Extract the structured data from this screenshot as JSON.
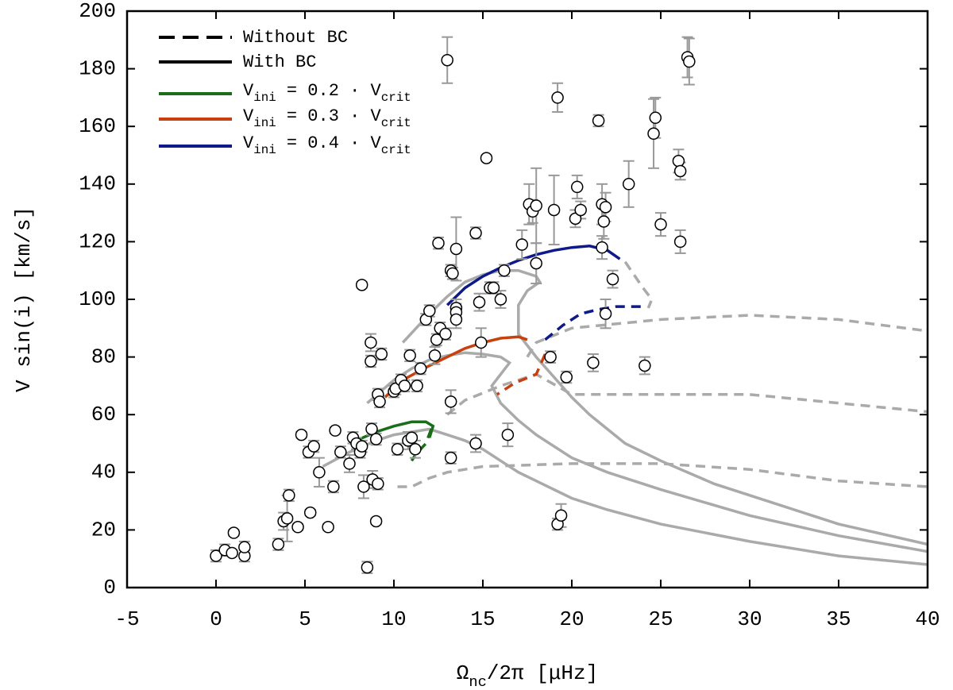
{
  "chart_data": {
    "type": "line",
    "xlabel": [
      "Ω",
      "nc",
      "/2π [μHz]"
    ],
    "ylabel": "V sin(i) [km/s]",
    "xlim": [
      -5,
      40
    ],
    "xticks": [
      -5,
      0,
      5,
      10,
      15,
      20,
      25,
      30,
      35,
      40
    ],
    "ylim": [
      0,
      200
    ],
    "yticks": [
      0,
      20,
      40,
      60,
      80,
      100,
      120,
      140,
      160,
      180,
      200
    ],
    "legend_position": "upper left",
    "legend": [
      {
        "label": "Without BC",
        "color": "#000000",
        "dash": true
      },
      {
        "label": "With BC",
        "color": "#000000",
        "dash": false
      },
      {
        "label": [
          "V",
          "ini",
          " = 0.2 · V",
          "crit"
        ],
        "color": "#1a6e1a",
        "dash": false
      },
      {
        "label": [
          "V",
          "ini",
          " = 0.3 · V",
          "crit"
        ],
        "color": "#c8400e",
        "dash": false
      },
      {
        "label": [
          "V",
          "ini",
          " = 0.4 · V",
          "crit"
        ],
        "color": "#0e1a8a",
        "dash": false
      }
    ],
    "series": [
      {
        "color": "#aaaaaa",
        "dash": true,
        "x": [
          10.2,
          11,
          12,
          13,
          15,
          20,
          25,
          30,
          35,
          40
        ],
        "values": [
          35,
          35,
          38,
          40,
          42,
          43,
          43,
          41,
          37,
          35
        ]
      },
      {
        "color": "#aaaaaa",
        "dash": true,
        "x": [
          13,
          14,
          16,
          18,
          20,
          25,
          30,
          35,
          40
        ],
        "values": [
          60,
          65,
          70,
          74,
          67,
          67,
          67,
          64,
          61
        ]
      },
      {
        "color": "#aaaaaa",
        "dash": true,
        "x": [
          17.5,
          18,
          20,
          25,
          30,
          35,
          40
        ],
        "values": [
          80,
          85,
          90,
          93,
          94.5,
          93,
          89
        ]
      },
      {
        "color": "#aaaaaa",
        "dash": true,
        "x": [
          23,
          24,
          24.5,
          24.3
        ],
        "values": [
          113,
          104,
          100,
          97
        ]
      },
      {
        "color": "#aaaaaa",
        "dash": false,
        "x": [
          6,
          7.5,
          9,
          10,
          11,
          12,
          13,
          14,
          15,
          16,
          17,
          18,
          20,
          22,
          25,
          30,
          35,
          40
        ],
        "values": [
          42,
          47,
          51,
          53,
          54,
          55,
          53,
          51,
          48,
          44,
          40,
          37,
          31,
          27,
          22,
          16,
          11,
          8
        ]
      },
      {
        "color": "#aaaaaa",
        "dash": false,
        "x": [
          8.5,
          10,
          11,
          12,
          13,
          14,
          15,
          16,
          16.5,
          16,
          15.5,
          16,
          17,
          18,
          20,
          22,
          25,
          30,
          35,
          40
        ],
        "values": [
          64,
          72,
          76,
          79,
          80.5,
          81.5,
          81,
          80,
          78,
          74,
          70,
          64,
          58,
          53,
          45,
          40,
          34,
          25,
          18,
          12.5
        ]
      },
      {
        "color": "#aaaaaa",
        "dash": false,
        "x": [
          10.5,
          12,
          13,
          14,
          15,
          16,
          17,
          18,
          18.2,
          17.5,
          17,
          17,
          18,
          19,
          20,
          21,
          22,
          23,
          25,
          28,
          30,
          35,
          40
        ],
        "values": [
          85,
          95,
          101,
          106,
          108.5,
          110,
          110,
          108,
          106,
          103,
          98,
          88,
          80,
          73,
          66,
          60,
          55,
          50,
          44,
          36,
          32,
          22,
          15
        ]
      },
      {
        "color": "#1a6e1a",
        "dash": false,
        "x": [
          7.5,
          9,
          10,
          11,
          11.8,
          12.2,
          12
        ],
        "values": [
          50,
          54,
          56,
          57.5,
          57.5,
          56,
          52
        ]
      },
      {
        "color": "#1a6e1a",
        "dash": true,
        "x": [
          12.1,
          11.8,
          11.2,
          11
        ],
        "values": [
          55,
          50,
          46,
          44
        ]
      },
      {
        "color": "#c8400e",
        "dash": false,
        "x": [
          9.5,
          10.5,
          12,
          13,
          14,
          15,
          16,
          17,
          17.5
        ],
        "values": [
          66,
          72,
          77,
          80,
          83,
          85,
          86.5,
          87,
          86
        ]
      },
      {
        "color": "#c8400e",
        "dash": true,
        "x": [
          18.5,
          18,
          16.8,
          15.8
        ],
        "values": [
          81,
          74,
          71,
          67
        ]
      },
      {
        "color": "#0e1a8a",
        "dash": false,
        "x": [
          13,
          14,
          15,
          16,
          17,
          18,
          19,
          20,
          21,
          22,
          22.7
        ],
        "values": [
          98,
          104,
          108,
          111,
          113.5,
          115.5,
          117,
          118,
          118.5,
          117,
          114
        ]
      },
      {
        "color": "#0e1a8a",
        "dash": true,
        "x": [
          18.5,
          19.5,
          20.5,
          21.5,
          22.5,
          24.2
        ],
        "values": [
          86,
          91,
          95,
          96.5,
          97.5,
          97.5
        ]
      }
    ],
    "points": {
      "color": "#999999",
      "x": [
        0,
        0.5,
        0.9,
        1,
        1.6,
        1.6,
        3.5,
        3.8,
        4,
        4.1,
        4.6,
        4.8,
        5.2,
        5.5,
        5.3,
        5.8,
        6.3,
        6.6,
        6.7,
        7,
        7.5,
        7.7,
        7.9,
        8.1,
        8.2,
        8.3,
        8.2,
        8.5,
        8.7,
        8.7,
        8.75,
        8.8,
        9,
        9.1,
        9.1,
        9.2,
        9.3,
        9,
        10,
        10.1,
        10.2,
        10.4,
        10.6,
        10.8,
        10.9,
        11,
        11.2,
        11.3,
        11.5,
        11.8,
        12,
        12.3,
        12.4,
        12.5,
        12.6,
        12.9,
        13,
        13.2,
        13.3,
        13.5,
        13.5,
        13.5,
        13.5,
        13.2,
        13.2,
        14.6,
        14.6,
        14.8,
        14.9,
        15.2,
        15.4,
        15.6,
        16,
        16.2,
        16.4,
        17.2,
        17.6,
        17.8,
        18,
        18,
        18.8,
        19,
        19.2,
        19.2,
        19.4,
        19.7,
        20.2,
        20.3,
        20.5,
        21.2,
        21.5,
        21.7,
        21.7,
        21.8,
        21.9,
        21.9,
        22.3,
        23.2,
        24.1,
        24.6,
        24.7,
        25,
        26,
        26.1,
        26.1,
        26.5,
        26.6
      ],
      "y": [
        11,
        13,
        12,
        19,
        11,
        14,
        15,
        23,
        24,
        32,
        21,
        53,
        47,
        49,
        26,
        40,
        21,
        35,
        54.5,
        47,
        43,
        52,
        50,
        47,
        49,
        35,
        105,
        7,
        85,
        78.5,
        55,
        37.5,
        23,
        36,
        67,
        64.5,
        81,
        51.5,
        68,
        69,
        48,
        72,
        70,
        51,
        80.5,
        52,
        48,
        70,
        76,
        93,
        96,
        80.5,
        86,
        119.5,
        90,
        88,
        183,
        110,
        109,
        117.5,
        97,
        95.5,
        93,
        64.5,
        45,
        50,
        123,
        99,
        85,
        149,
        104,
        104,
        100,
        110,
        53,
        119,
        133,
        130.5,
        132.5,
        112.5,
        80,
        131,
        170,
        22,
        25,
        73,
        128,
        139,
        131,
        78,
        162,
        133,
        118,
        127,
        132,
        95,
        107,
        140,
        77,
        157.5,
        163,
        126,
        148,
        144.5,
        120,
        184,
        182.5
      ],
      "yerr": [
        2,
        2,
        1,
        1,
        2,
        2,
        2,
        3,
        8,
        2,
        1,
        1,
        2,
        2,
        1,
        5,
        1,
        2,
        1,
        2,
        3,
        2,
        2,
        2,
        2,
        4,
        1,
        2,
        3,
        2,
        2,
        3,
        1,
        2,
        2,
        2,
        2,
        2,
        2,
        2,
        2,
        2,
        2,
        3,
        2,
        2,
        3,
        2,
        2,
        2,
        2,
        3,
        2,
        2,
        2,
        2,
        8,
        2,
        2,
        11,
        3,
        3,
        3,
        4,
        2,
        3,
        2,
        3,
        5,
        1,
        2,
        2,
        3,
        2,
        4,
        5,
        7,
        4,
        13,
        7,
        2,
        12,
        5,
        2,
        4,
        2,
        3,
        4,
        3,
        3,
        2,
        7,
        4,
        6,
        5,
        5,
        3,
        8,
        3,
        12,
        7,
        4,
        4,
        3,
        4,
        7,
        8
      ]
    }
  }
}
